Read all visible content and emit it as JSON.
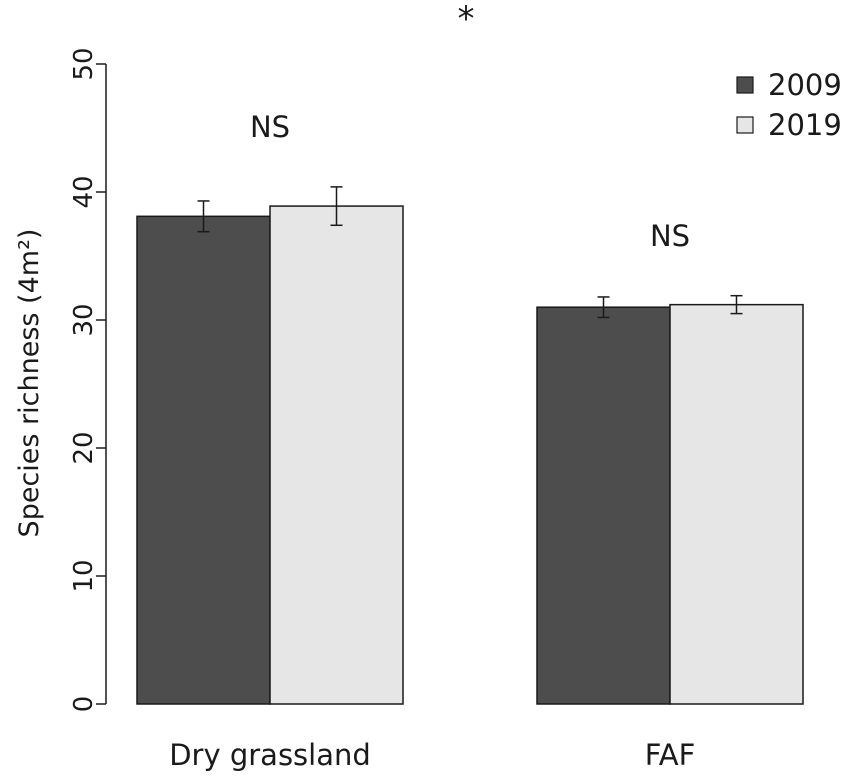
{
  "chart_data": {
    "type": "bar",
    "categories": [
      "Dry grassland",
      "FAF"
    ],
    "series": [
      {
        "name": "2009",
        "values": [
          38.1,
          31.0
        ],
        "errors": [
          1.2,
          0.8
        ],
        "color": "#4d4d4d"
      },
      {
        "name": "2019",
        "values": [
          38.9,
          31.2
        ],
        "errors": [
          1.5,
          0.7
        ],
        "color": "#e6e6e6"
      }
    ],
    "annotations": [
      "NS",
      "NS"
    ],
    "significance_marker": "*",
    "ylabel": "Species richness (4m²)",
    "xlabel": "",
    "ylim": [
      0,
      50
    ],
    "yticks": [
      "0",
      "10",
      "20",
      "30",
      "40",
      "50"
    ],
    "legend_position": "top-right",
    "grid": false
  }
}
